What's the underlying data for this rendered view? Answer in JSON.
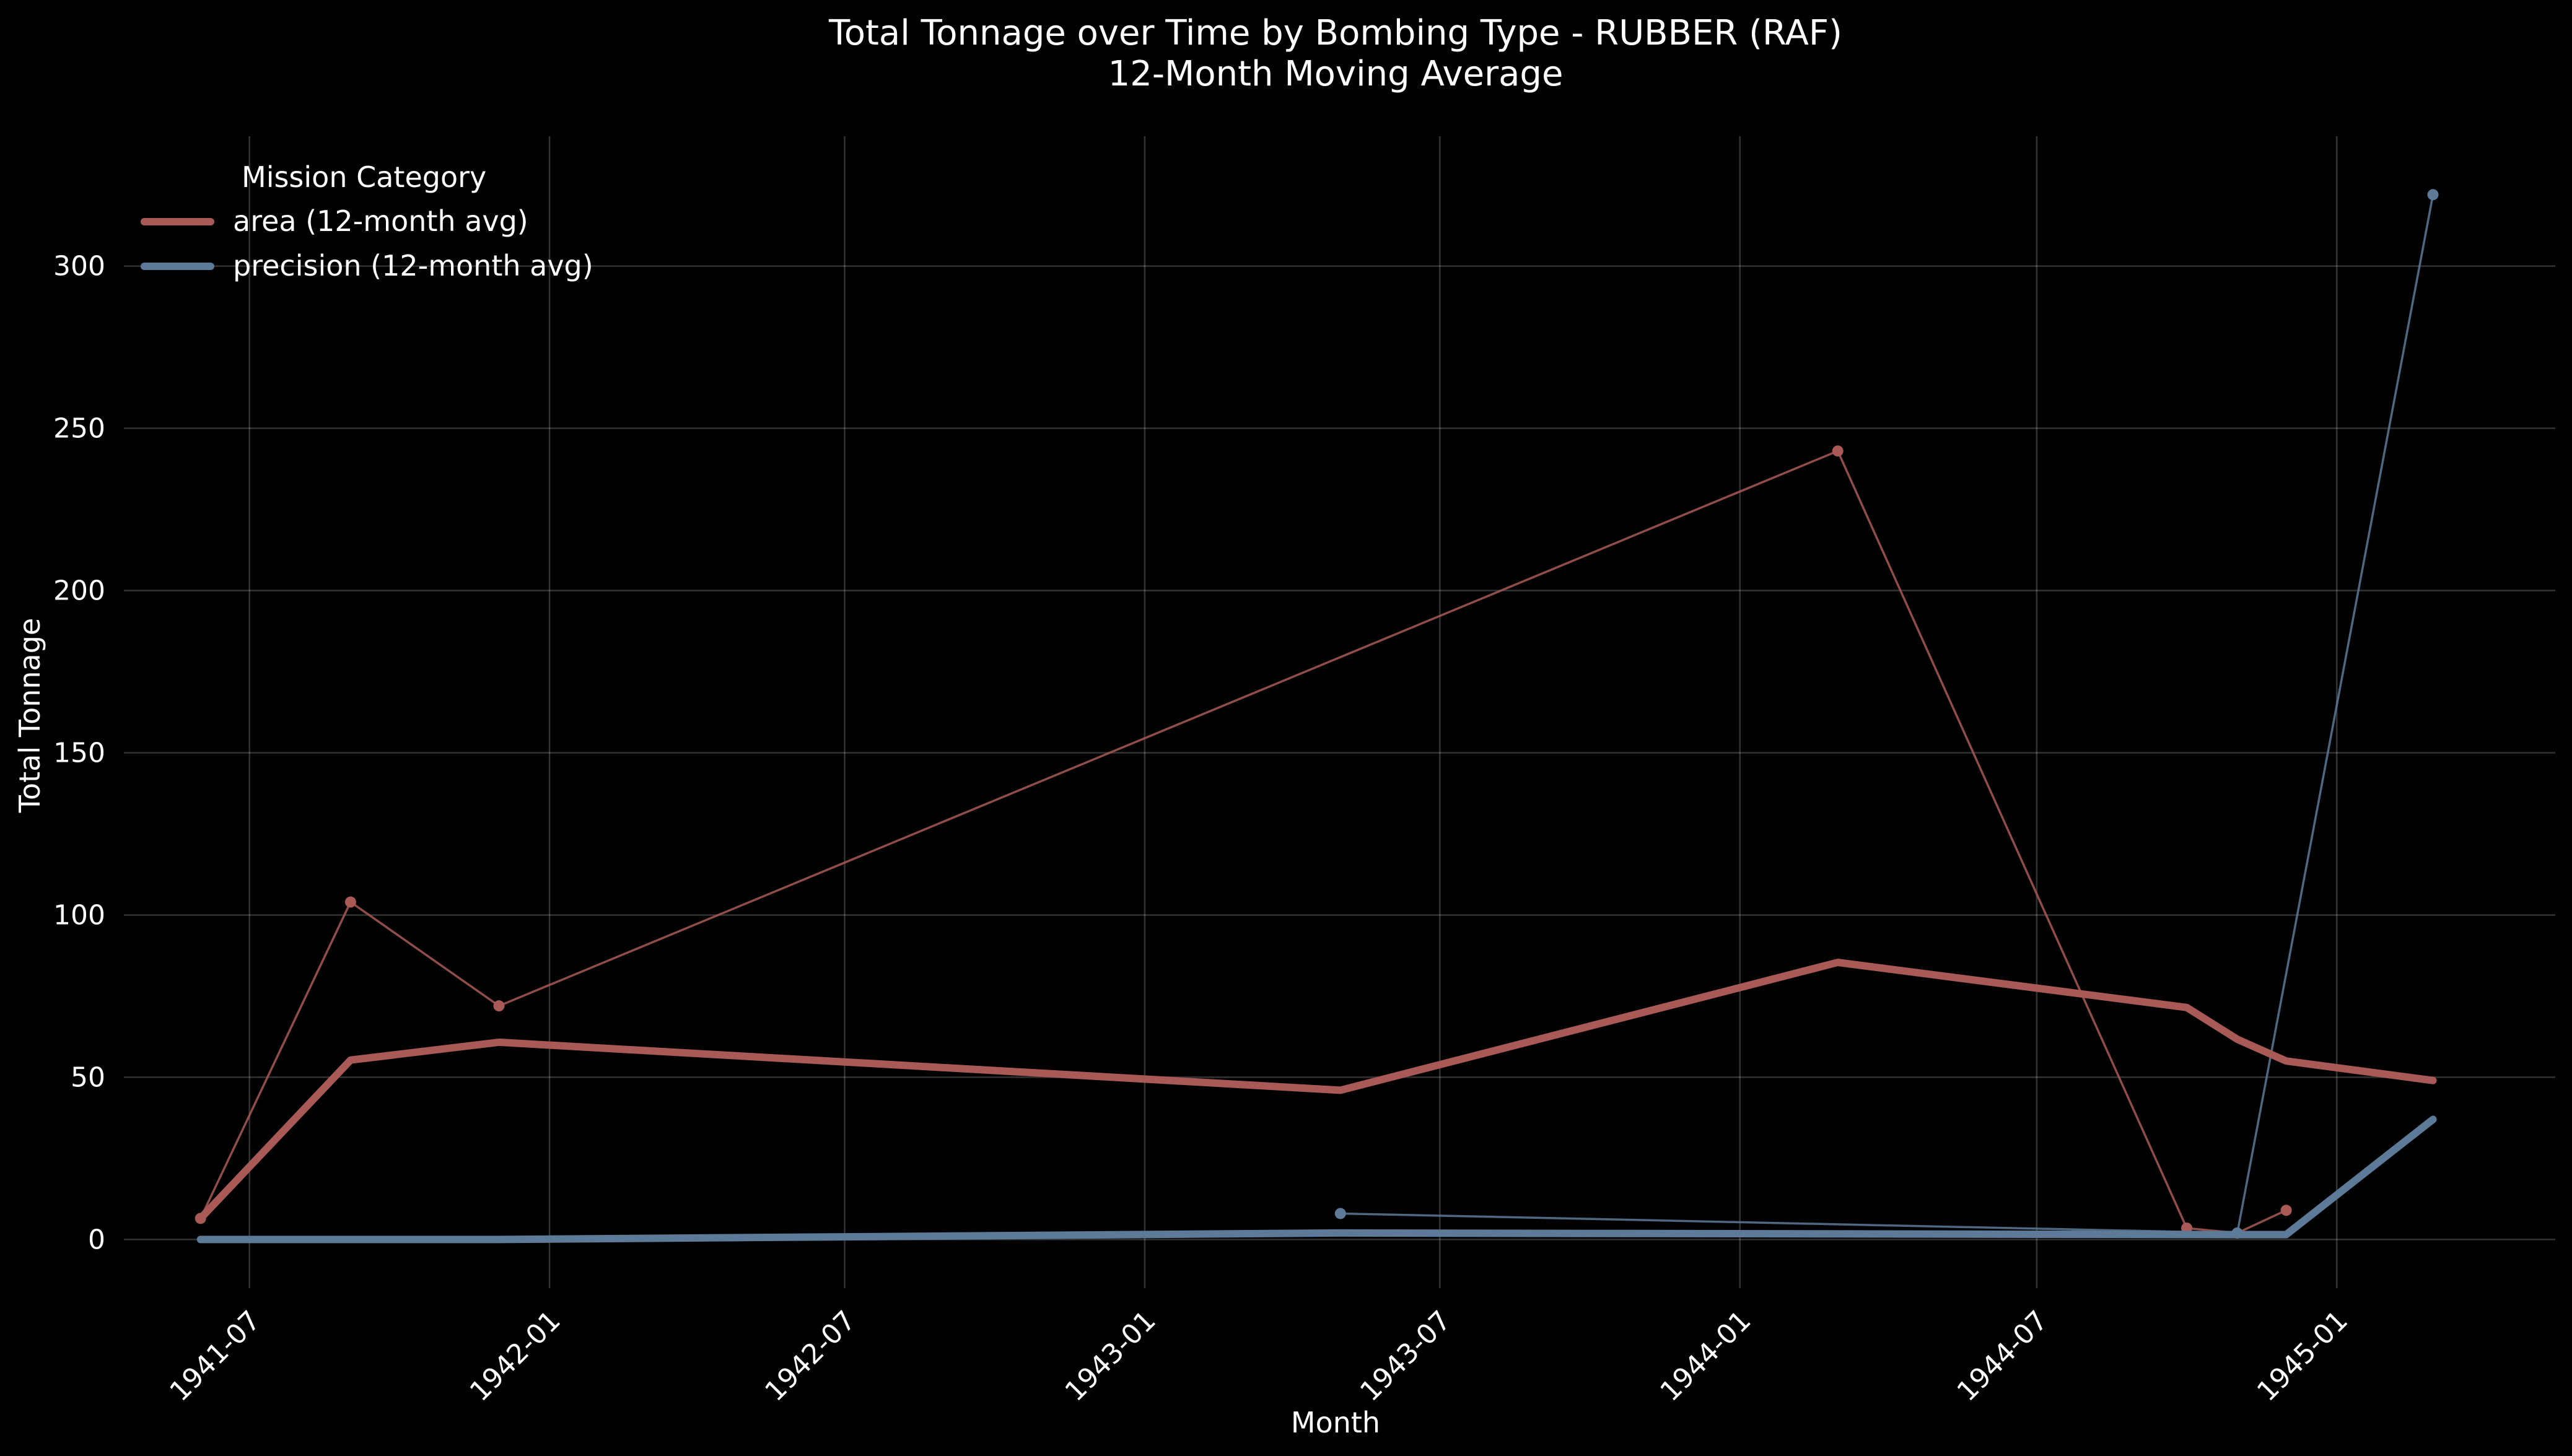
{
  "chart_data": {
    "type": "line",
    "title": "Total Tonnage over Time by Bombing Type - RUBBER (RAF)",
    "subtitle": "12-Month Moving Average",
    "xlabel": "Month",
    "ylabel": "Total Tonnage",
    "xlim": [
      "1941-04-15",
      "1945-05-15"
    ],
    "ylim": [
      -15,
      340
    ],
    "x_ticks": [
      "1941-07",
      "1942-01",
      "1942-07",
      "1943-01",
      "1943-07",
      "1944-01",
      "1944-07",
      "1945-01"
    ],
    "y_ticks": [
      0,
      50,
      100,
      150,
      200,
      250,
      300
    ],
    "grid": true,
    "legend": {
      "title": "Mission Category",
      "placement": "top-left"
    },
    "series": [
      {
        "name": "area",
        "kind": "raw",
        "color": "#a95a57",
        "points": [
          {
            "x": "1941-06-01",
            "y": 6.5
          },
          {
            "x": "1941-09-01",
            "y": 104
          },
          {
            "x": "1941-12-01",
            "y": 72
          },
          {
            "x": "1944-03-01",
            "y": 243
          },
          {
            "x": "1944-10-01",
            "y": 3.5
          },
          {
            "x": "1944-11-01",
            "y": 2
          },
          {
            "x": "1944-12-01",
            "y": 9
          }
        ]
      },
      {
        "name": "area (12-month avg)",
        "kind": "avg",
        "color": "#a95a57",
        "points": [
          {
            "x": "1941-06-01",
            "y": 6.5
          },
          {
            "x": "1941-09-01",
            "y": 55.3
          },
          {
            "x": "1941-12-01",
            "y": 60.8
          },
          {
            "x": "1943-05-01",
            "y": 46
          },
          {
            "x": "1944-03-01",
            "y": 85.4
          },
          {
            "x": "1944-10-01",
            "y": 71.5
          },
          {
            "x": "1944-11-01",
            "y": 61.7
          },
          {
            "x": "1944-12-01",
            "y": 55
          },
          {
            "x": "1945-03-01",
            "y": 49
          }
        ]
      },
      {
        "name": "precision",
        "kind": "raw",
        "color": "#5d7a99",
        "points": [
          {
            "x": "1943-05-01",
            "y": 8
          },
          {
            "x": "1944-11-01",
            "y": 2
          },
          {
            "x": "1945-03-01",
            "y": 322
          }
        ]
      },
      {
        "name": "precision (12-month avg)",
        "kind": "avg",
        "color": "#5d7a99",
        "points": [
          {
            "x": "1941-06-01",
            "y": 0
          },
          {
            "x": "1941-12-01",
            "y": 0
          },
          {
            "x": "1943-05-01",
            "y": 2
          },
          {
            "x": "1944-11-01",
            "y": 1.5
          },
          {
            "x": "1944-12-01",
            "y": 1.5
          },
          {
            "x": "1945-03-01",
            "y": 37
          }
        ]
      }
    ]
  }
}
